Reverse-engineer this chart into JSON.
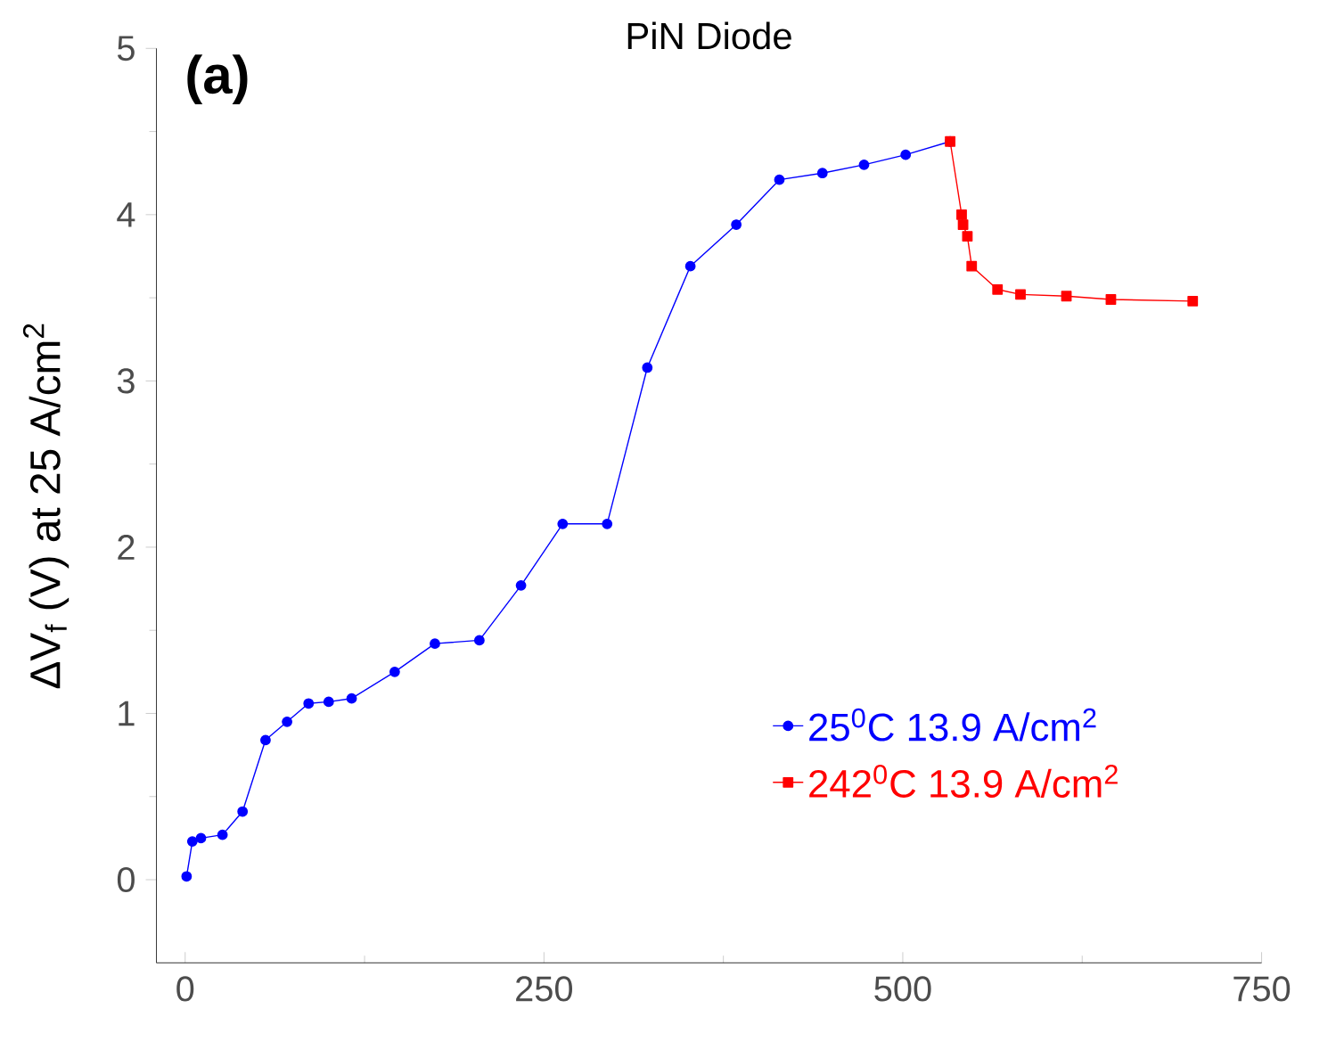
{
  "chart_data": {
    "type": "line",
    "title": "PiN Diode",
    "ylabel": "ΔV$_{f}$ (V) at 25 A/cm$^{2}$",
    "annotations": [
      "(a)"
    ],
    "xlim": [
      -20,
      750
    ],
    "xticks": [
      0,
      250,
      500,
      750
    ],
    "ylim": [
      -0.5,
      5
    ],
    "yticks": [
      0,
      1,
      2,
      3,
      4,
      5
    ],
    "legend": "bottom right",
    "series": [
      {
        "name": "25$^{0}$C 13.9 A/cm$^{2}$",
        "color": "#0000ff",
        "marker": "circle",
        "x": [
          1,
          5,
          11,
          26,
          40,
          56,
          71,
          86,
          100,
          116,
          146,
          174,
          205,
          234,
          263,
          294,
          322,
          352,
          384,
          414,
          444,
          473,
          502,
          533
        ],
        "values": [
          0.02,
          0.23,
          0.25,
          0.27,
          0.41,
          0.84,
          0.95,
          1.06,
          1.07,
          1.09,
          1.25,
          1.42,
          1.44,
          1.77,
          2.14,
          2.14,
          3.08,
          3.69,
          3.94,
          4.21,
          4.25,
          4.3,
          4.36,
          4.44
        ]
      },
      {
        "name": "242$^{0}$C 13.9 A/cm$^{2}$",
        "color": "#ff0000",
        "marker": "square",
        "x": [
          533,
          541,
          542,
          545,
          548,
          566,
          582,
          614,
          645,
          702
        ],
        "values": [
          4.44,
          4.0,
          3.94,
          3.87,
          3.69,
          3.55,
          3.52,
          3.51,
          3.49,
          3.48
        ]
      }
    ]
  }
}
